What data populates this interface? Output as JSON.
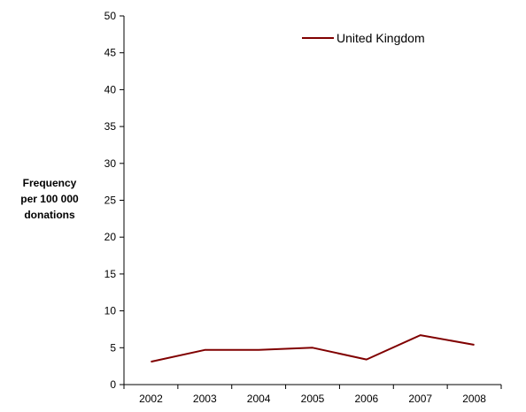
{
  "chart_data": {
    "type": "line",
    "categories": [
      "2002",
      "2003",
      "2004",
      "2005",
      "2006",
      "2007",
      "2008"
    ],
    "series": [
      {
        "name": "United Kingdom",
        "color": "#800000",
        "values": [
          3.1,
          4.7,
          4.7,
          5.0,
          3.4,
          6.7,
          5.4
        ]
      }
    ],
    "ylabel_lines": [
      "Frequency",
      "per 100 000",
      "donations"
    ],
    "ylim": [
      0,
      50
    ],
    "yticks": [
      "0",
      "5",
      "10",
      "15",
      "20",
      "25",
      "30",
      "35",
      "40",
      "45",
      "50"
    ],
    "grid": false,
    "legend_position": "top-right"
  }
}
